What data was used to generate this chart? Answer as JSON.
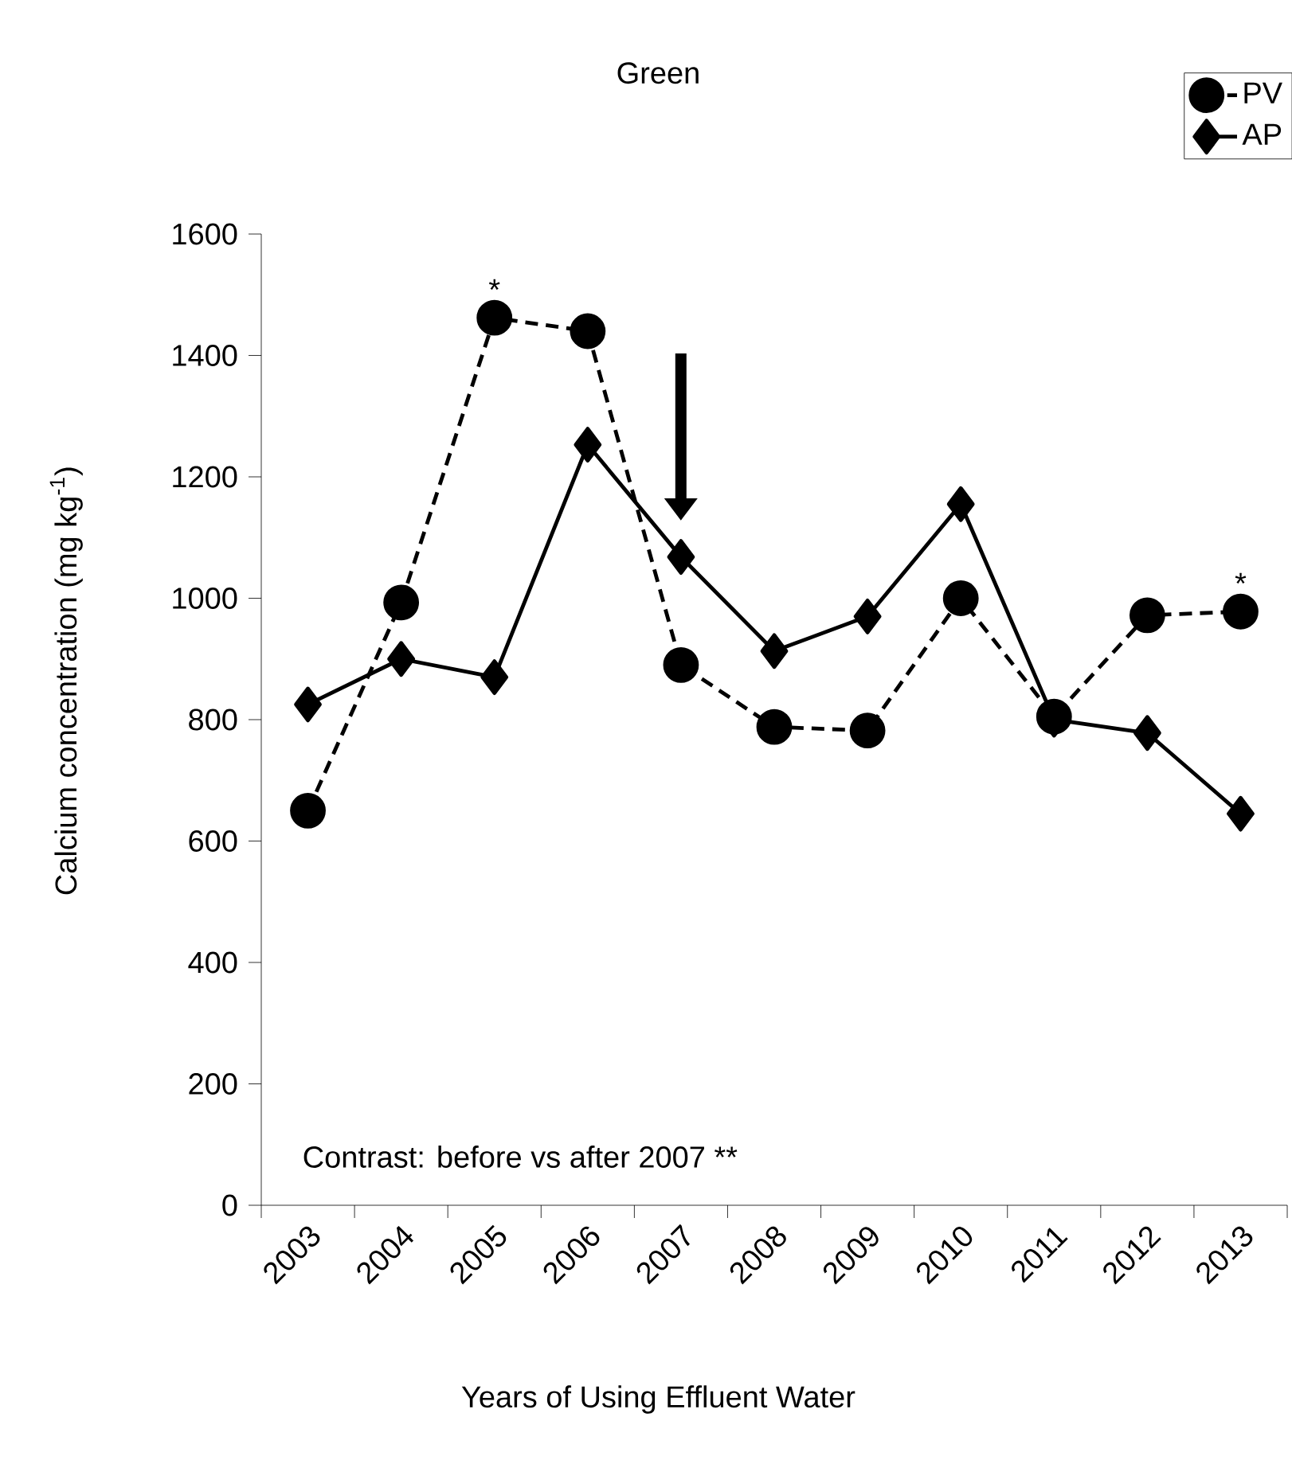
{
  "chart_data": {
    "type": "line",
    "title": "Green",
    "xlabel": "Years of Using Effluent Water",
    "ylabel": "Calcium concentration (mg kg$^{-1}$)",
    "categories": [
      "2003",
      "2004",
      "2005",
      "2006",
      "2007",
      "2008",
      "2009",
      "2010",
      "2011",
      "2012",
      "2013"
    ],
    "series": [
      {
        "name": "PV",
        "color": "#000000",
        "marker": "circle",
        "line_style": "dashed",
        "values": [
          650,
          993,
          1462,
          1440,
          890,
          788,
          782,
          1000,
          805,
          972,
          978
        ]
      },
      {
        "name": "AP",
        "color": "#000000",
        "marker": "diamond",
        "line_style": "solid",
        "values": [
          825,
          900,
          870,
          1253,
          1068,
          913,
          970,
          1155,
          800,
          778,
          645
        ]
      }
    ],
    "ylim": [
      0,
      1600
    ],
    "yticks": [
      0,
      200,
      400,
      600,
      800,
      1000,
      1200,
      1400,
      1600
    ],
    "grid": false,
    "legend": "top right",
    "annotations": [
      {
        "text": "*",
        "x": "2005",
        "y": 1462
      },
      {
        "text": "*",
        "x": "2013",
        "y": 978
      },
      "Contrast: before vs after 2007 **"
    ]
  }
}
